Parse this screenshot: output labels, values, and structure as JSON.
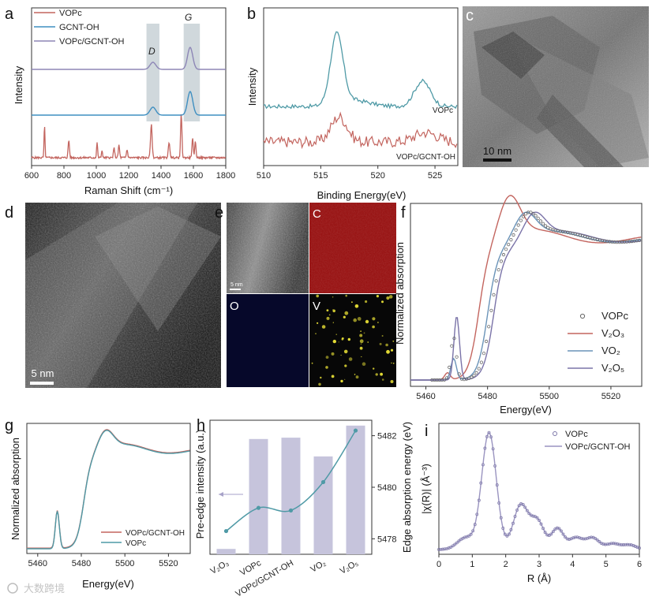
{
  "panels": {
    "a": {
      "letter": "a"
    },
    "b": {
      "letter": "b"
    },
    "c": {
      "letter": "c",
      "scale_bar": "10 nm"
    },
    "d": {
      "letter": "d",
      "scale_bar": "5 nm"
    },
    "e": {
      "letter": "e",
      "maps": [
        "C",
        "O",
        "V"
      ],
      "scale_bar": "5 nm"
    },
    "f": {
      "letter": "f"
    },
    "g": {
      "letter": "g"
    },
    "h": {
      "letter": "h"
    },
    "i": {
      "letter": "i"
    }
  },
  "watermark": "大数跨境",
  "colors": {
    "VOPc": "#c3655f",
    "GCNT_OH": "#3f8fc1",
    "VOPc_GCNT_OH": "#8d86b6",
    "teal": "#4f9aa6",
    "V2O3": "#c3655f",
    "VO2": "#6a93b8",
    "V2O5": "#7a73a8",
    "bars": "#c6c4dc",
    "highlight": "#c8d1d6"
  },
  "chart_data": [
    {
      "panel": "a",
      "type": "line",
      "xlabel": "Raman Shift (cm⁻¹)",
      "ylabel": "Intensity",
      "xlim": [
        600,
        1800
      ],
      "xticks": [
        "600",
        "800",
        "1000",
        "1200",
        "1400",
        "1600",
        "1800"
      ],
      "annotations": [
        "D",
        "G"
      ],
      "highlight_bands": [
        [
          1310,
          1390
        ],
        [
          1540,
          1640
        ]
      ],
      "legend": [
        "VOPc",
        "GCNT-OH",
        "VOPc/GCNT-OH"
      ],
      "series": [
        {
          "name": "VOPc",
          "peaks": [
            680,
            830,
            1005,
            1035,
            1110,
            1140,
            1190,
            1340,
            1450,
            1525,
            1595,
            1612
          ]
        },
        {
          "name": "GCNT-OH",
          "peaks": [
            1350,
            1580
          ]
        },
        {
          "name": "VOPc/GCNT-OH",
          "peaks": [
            1350,
            1580
          ]
        }
      ]
    },
    {
      "panel": "b",
      "type": "line",
      "xlabel": "Binding Energy(eV)",
      "ylabel": "Intensity",
      "xlim": [
        510,
        527
      ],
      "xticks": [
        "510",
        "515",
        "520",
        "525"
      ],
      "series": [
        {
          "name": "VOPc",
          "peaks": [
            516.5,
            523.8
          ]
        },
        {
          "name": "VOPc/GCNT-OH",
          "peaks": [
            516.6,
            524
          ]
        }
      ]
    },
    {
      "panel": "f",
      "type": "line",
      "xlabel": "Energy(eV)",
      "ylabel": "Normalized absorption",
      "xlim": [
        5455,
        5530
      ],
      "xticks": [
        "5460",
        "5480",
        "5500",
        "5520"
      ],
      "legend": [
        "VOPc",
        "V₂O₃",
        "VO₂",
        "V₂O₅"
      ],
      "series": [
        {
          "name": "VOPc",
          "edge": 5481,
          "preedge": 5469
        },
        {
          "name": "V₂O₃",
          "edge": 5477,
          "preedge": 5467
        },
        {
          "name": "VO₂",
          "edge": 5480,
          "preedge": 5469
        },
        {
          "name": "V₂O₅",
          "edge": 5482,
          "preedge": 5470
        }
      ]
    },
    {
      "panel": "g",
      "type": "line",
      "xlabel": "Energy(eV)",
      "ylabel": "Normalized absorption",
      "xlim": [
        5455,
        5530
      ],
      "xticks": [
        "5460",
        "5480",
        "5500",
        "5520"
      ],
      "legend": [
        "VOPc/GCNT-OH",
        "VOPc"
      ],
      "series": [
        {
          "name": "VOPc/GCNT-OH",
          "edge": 5481,
          "preedge": 5469
        },
        {
          "name": "VOPc",
          "edge": 5481,
          "preedge": 5469
        }
      ]
    },
    {
      "panel": "h",
      "type": "bar",
      "ylabel": "Pre-edge intensity (a.u.)",
      "y2label": "Edge absorption energy (eV)",
      "categories": [
        "V₂O₃",
        "VOPc",
        "VOPc/GCNT-OH",
        "VO₂",
        "V₂O₅"
      ],
      "bar_values": [
        0.04,
        0.86,
        0.87,
        0.73,
        0.96
      ],
      "line_values": [
        5478.3,
        5479.2,
        5479.1,
        5480.2,
        5482.2
      ],
      "y2lim": [
        5477.4,
        5482.6
      ],
      "y2ticks": [
        "5478",
        "5480",
        "5482"
      ]
    },
    {
      "panel": "i",
      "type": "line",
      "xlabel": "R (Å)",
      "ylabel": "|χ(R)| (Å⁻³)",
      "xlim": [
        0,
        6
      ],
      "xticks": [
        "0",
        "1",
        "2",
        "3",
        "4",
        "5",
        "6"
      ],
      "legend": [
        "VOPc",
        "VOPc/GCNT-OH"
      ],
      "series": [
        {
          "name": "VOPc",
          "main_peak": 1.5
        },
        {
          "name": "VOPc/GCNT-OH",
          "main_peak": 1.5
        }
      ]
    }
  ]
}
